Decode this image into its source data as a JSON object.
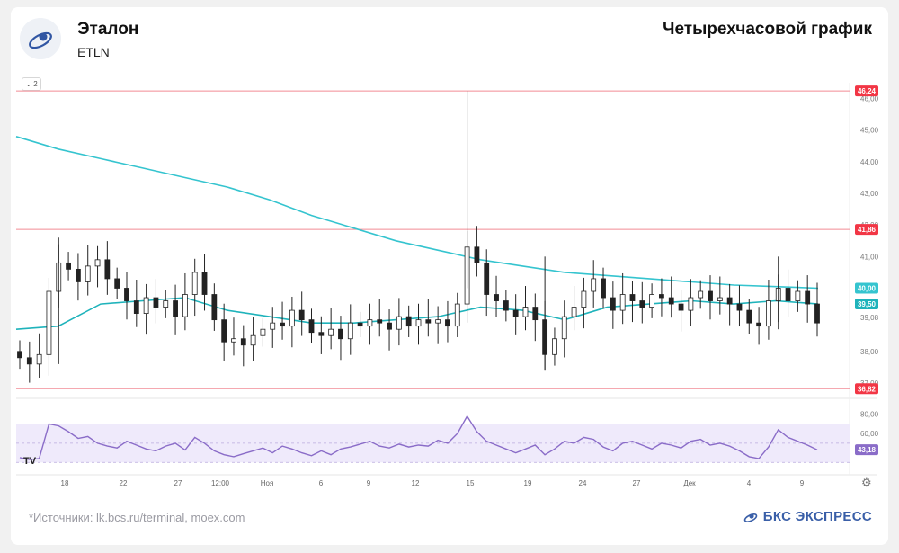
{
  "header": {
    "company": "Эталон",
    "ticker": "ETLN",
    "chart_title": "Четырехчасовой график"
  },
  "footer": {
    "source": "*Источники: lk.bcs.ru/terminal, moex.com",
    "brand": "БКС ЭКСПРЕСС"
  },
  "toolbar": {
    "collapse_label": "⌄ 2"
  },
  "icons": {
    "logo": "bcs-logo-icon",
    "settings": "gear-icon",
    "tradingview": "tradingview-icon"
  },
  "colors": {
    "up": "#26a69a",
    "down": "#222222",
    "candle": "#222222",
    "ma_slow": "#35c4cf",
    "ma_fast": "#1fb3bb",
    "level": "#f28b95",
    "level_label": "#f23645",
    "rsi": "#8a6cc8",
    "rsi_band": "#efeafb"
  },
  "chart_data": [
    {
      "type": "candlestick",
      "title": "",
      "ylim": [
        36.6,
        46.5
      ],
      "y_ticks": [
        "46,00",
        "45,00",
        "44,00",
        "43,00",
        "42,00",
        "41,00",
        "40,00",
        "39,08",
        "38,00",
        "37,00"
      ],
      "x_ticks": [
        "18",
        "22",
        "27",
        "12:00",
        "Ноя",
        "6",
        "9",
        "12",
        "15",
        "19",
        "24",
        "27",
        "Дек",
        "4",
        "9"
      ],
      "horizontal_levels": [
        {
          "value": 46.24,
          "label": "46,24"
        },
        {
          "value": 41.86,
          "label": "41,86"
        },
        {
          "value": 36.82,
          "label": "36,82"
        }
      ],
      "price_labels": [
        {
          "value": 40.0,
          "label": "40,00",
          "series": "ma_slow"
        },
        {
          "value": 39.5,
          "label": "39,50",
          "series": "ma_fast"
        }
      ],
      "close_path": [
        37.8,
        37.6,
        37.9,
        39.9,
        40.8,
        40.6,
        40.2,
        40.7,
        40.9,
        40.3,
        40.0,
        39.6,
        39.2,
        39.7,
        39.4,
        39.6,
        39.1,
        39.8,
        40.5,
        39.8,
        39.0,
        38.3,
        38.4,
        38.2,
        38.5,
        38.7,
        38.9,
        38.8,
        39.3,
        39.0,
        38.6,
        38.5,
        38.7,
        38.4,
        38.9,
        38.8,
        39.0,
        38.9,
        38.7,
        39.1,
        38.8,
        39.0,
        38.9,
        39.0,
        38.8,
        39.5,
        41.3,
        40.8,
        39.8,
        39.6,
        39.3,
        39.1,
        39.4,
        39.0,
        37.9,
        38.4,
        39.1,
        39.4,
        39.9,
        40.3,
        39.7,
        39.3,
        39.8,
        39.6,
        39.4,
        39.8,
        39.7,
        39.5,
        39.3,
        39.7,
        39.9,
        39.6,
        39.7,
        39.5,
        39.3,
        38.9,
        38.8,
        39.6,
        40.0,
        39.6,
        39.9,
        39.5,
        38.9
      ],
      "wicks": [
        {
          "x_index": 46,
          "high": 46.24,
          "low": 40.0
        },
        {
          "x_index": 54,
          "high": 41.0,
          "low": 37.4
        },
        {
          "x_index": 4,
          "high": 41.6,
          "low": 37.6
        },
        {
          "x_index": 78,
          "high": 41.0,
          "low": 38.7
        }
      ],
      "series": [
        {
          "name": "",
          "role": "ma_slow",
          "values": [
            44.8,
            44.4,
            44.1,
            43.8,
            43.5,
            43.2,
            42.8,
            42.3,
            41.9,
            41.5,
            41.2,
            40.9,
            40.7,
            40.5,
            40.4,
            40.3,
            40.2,
            40.1,
            40.05,
            40.0
          ]
        },
        {
          "name": "",
          "role": "ma_fast",
          "values": [
            38.7,
            38.8,
            39.5,
            39.6,
            39.7,
            39.3,
            39.1,
            38.9,
            38.9,
            39.0,
            39.1,
            39.4,
            39.3,
            39.0,
            39.4,
            39.5,
            39.6,
            39.5,
            39.6,
            39.5
          ]
        }
      ]
    },
    {
      "type": "line",
      "title": "",
      "ylim": [
        20,
        90
      ],
      "y_ticks": [
        "80,00",
        "60,00"
      ],
      "band": [
        30,
        70
      ],
      "last_label": "43,18",
      "series": [
        {
          "name": "",
          "role": "rsi",
          "values": [
            35,
            33,
            34,
            70,
            68,
            62,
            55,
            57,
            50,
            47,
            45,
            52,
            48,
            44,
            42,
            47,
            50,
            43,
            56,
            50,
            42,
            38,
            36,
            39,
            42,
            45,
            40,
            47,
            44,
            40,
            37,
            42,
            38,
            44,
            46,
            49,
            52,
            47,
            45,
            49,
            46,
            48,
            47,
            53,
            50,
            60,
            78,
            62,
            52,
            48,
            44,
            40,
            44,
            48,
            38,
            44,
            52,
            50,
            56,
            54,
            46,
            42,
            50,
            52,
            48,
            44,
            50,
            48,
            45,
            52,
            54,
            48,
            50,
            47,
            42,
            36,
            34,
            46,
            64,
            56,
            52,
            48,
            43.18
          ]
        }
      ]
    }
  ]
}
